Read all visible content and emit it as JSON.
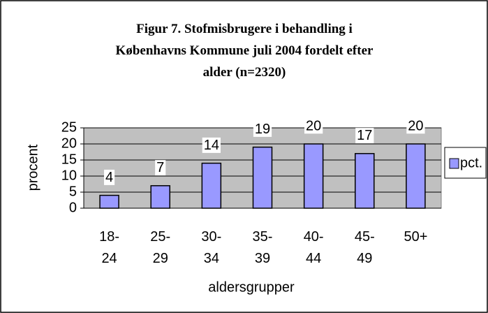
{
  "chart_data": {
    "type": "bar",
    "title": "Figur 7. Stofmisbrugere i behandling i\nKøbenhavns Kommune  juli 2004 fordelt efter\nalder (n=2320)",
    "x_label": "aldersgrupper",
    "y_label": "procent",
    "categories": [
      "18-\n24",
      "25-\n29",
      "30-\n34",
      "35-\n39",
      "40-\n44",
      "45-\n49",
      "50+"
    ],
    "series": [
      {
        "name": "pct.",
        "color": "#9999ff",
        "values": [
          4,
          7,
          14,
          19,
          20,
          17,
          20
        ]
      }
    ],
    "ylim": [
      0,
      25
    ],
    "yticks": [
      0,
      5,
      10,
      15,
      20,
      25
    ],
    "grid": true,
    "legend": "right"
  }
}
